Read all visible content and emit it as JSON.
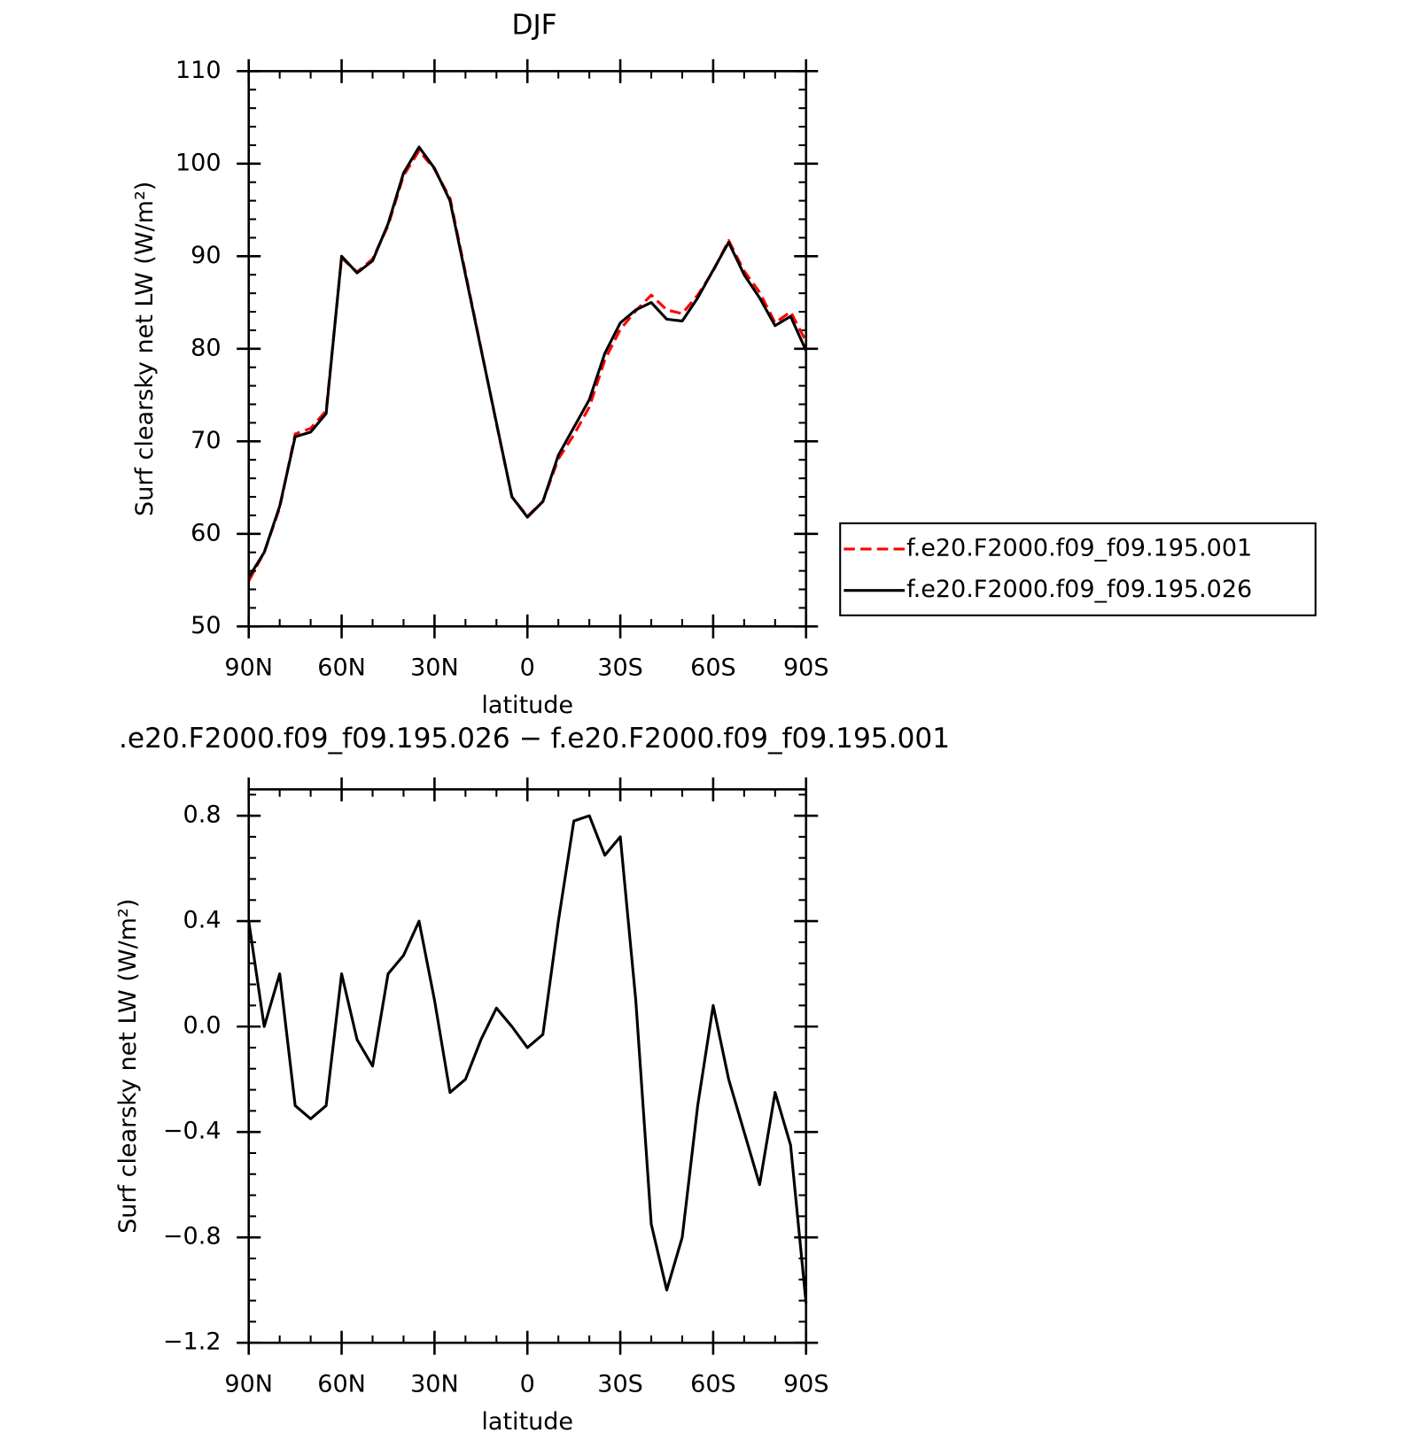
{
  "chart_data": [
    {
      "type": "line",
      "title": "DJF",
      "xlabel": "latitude",
      "ylabel": "Surf clearsky net LW (W/m²)",
      "x": [
        90,
        85,
        80,
        75,
        70,
        65,
        60,
        55,
        50,
        45,
        40,
        35,
        30,
        25,
        20,
        15,
        10,
        5,
        0,
        -5,
        -10,
        -15,
        -20,
        -25,
        -30,
        -35,
        -40,
        -45,
        -50,
        -55,
        -60,
        -65,
        -70,
        -75,
        -80,
        -85,
        -90
      ],
      "series": [
        {
          "name": "f.e20.F2000.f09_f09.195.001",
          "color": "#ff0000",
          "dash": true,
          "values": [
            54.9,
            58,
            62.8,
            70.8,
            71.4,
            73.3,
            89.8,
            88.3,
            89.7,
            93.3,
            98.7,
            101.4,
            99.4,
            96.3,
            88.2,
            80.1,
            71.9,
            64,
            61.9,
            63.5,
            68.1,
            70.7,
            73.7,
            78.8,
            82.1,
            84.1,
            85.8,
            84.2,
            83.8,
            85.8,
            88.4,
            91.7,
            88.4,
            86.1,
            82.8,
            84,
            80.8
          ]
        },
        {
          "name": "f.e20.F2000.f09_f09.195.026",
          "color": "#000000",
          "dash": false,
          "values": [
            55.3,
            58,
            63,
            70.5,
            71,
            73,
            90,
            88.2,
            89.5,
            93.5,
            99,
            101.8,
            99.5,
            96,
            88,
            80,
            72,
            64,
            61.8,
            63.5,
            68.5,
            71.5,
            74.5,
            79.5,
            82.8,
            84.2,
            85,
            83.2,
            83,
            85.5,
            88.5,
            91.5,
            88,
            85.5,
            82.5,
            83.5,
            79.8
          ]
        }
      ],
      "xlim": [
        90,
        -90
      ],
      "xticks": [
        {
          "value": 90,
          "label": "90N"
        },
        {
          "value": 60,
          "label": "60N"
        },
        {
          "value": 30,
          "label": "30N"
        },
        0,
        {
          "value": -30,
          "label": "30S"
        },
        {
          "value": -60,
          "label": "60S"
        },
        {
          "value": -90,
          "label": "90S"
        }
      ],
      "ylim": [
        50,
        110
      ],
      "yticks": [
        50,
        60,
        70,
        80,
        90,
        100,
        110
      ],
      "legend": "right"
    },
    {
      "type": "line",
      "title": ".e20.F2000.f09_f09.195.026 − f.e20.F2000.f09_f09.195.001",
      "xlabel": "latitude",
      "ylabel": "Surf clearsky net LW (W/m²)",
      "x": [
        90,
        85,
        80,
        75,
        70,
        65,
        60,
        55,
        50,
        45,
        40,
        35,
        30,
        25,
        20,
        15,
        10,
        5,
        0,
        -5,
        -10,
        -15,
        -20,
        -25,
        -30,
        -35,
        -40,
        -45,
        -50,
        -55,
        -60,
        -65,
        -70,
        -75,
        -80,
        -85,
        -90
      ],
      "series": [
        {
          "color": "#000000",
          "dash": false,
          "values": [
            0.4,
            0,
            0.2,
            -0.3,
            -0.35,
            -0.3,
            0.2,
            -0.05,
            -0.15,
            0.2,
            0.27,
            0.4,
            0.1,
            -0.25,
            -0.2,
            -0.05,
            0.07,
            0,
            -0.08,
            -0.03,
            0.4,
            0.78,
            0.8,
            0.65,
            0.72,
            0.1,
            -0.75,
            -1,
            -0.8,
            -0.3,
            0.08,
            -0.2,
            -0.4,
            -0.6,
            -0.25,
            -0.45,
            -1.05
          ]
        }
      ],
      "xlim": [
        90,
        -90
      ],
      "xticks": [
        {
          "value": 90,
          "label": "90N"
        },
        {
          "value": 60,
          "label": "60N"
        },
        {
          "value": 30,
          "label": "30N"
        },
        0,
        {
          "value": -30,
          "label": "30S"
        },
        {
          "value": -60,
          "label": "60S"
        },
        {
          "value": -90,
          "label": "90S"
        }
      ],
      "ylim": [
        -1.2,
        0.9
      ],
      "yticks": [
        {
          "value": -1.2,
          "label": "−1.2"
        },
        {
          "value": -0.8,
          "label": "−0.8"
        },
        {
          "value": -0.4,
          "label": "−0.4"
        },
        {
          "value": 0,
          "label": "0.0"
        },
        0.4,
        0.8
      ]
    }
  ]
}
